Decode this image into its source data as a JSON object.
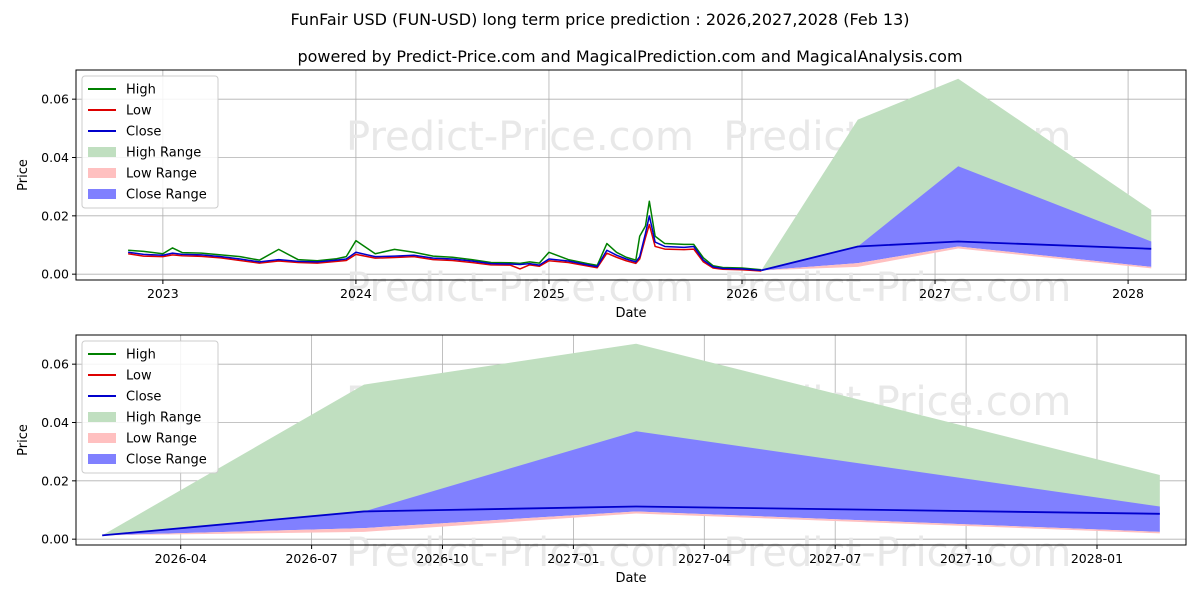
{
  "title": "FunFair USD (FUN-USD) long term price prediction : 2026,2027,2028 (Feb 13)",
  "subtitle": "powered by Predict-Price.com and MagicalPrediction.com and MagicalAnalysis.com",
  "watermark": "Predict-Price.com",
  "colors": {
    "high": "#008000",
    "low": "#dd0000",
    "close": "#0000cc",
    "high_range": "#c0dfc0",
    "low_range": "#ffc0c0",
    "close_range": "#8080ff"
  },
  "chart_data": [
    {
      "type": "area",
      "xlabel": "Date",
      "ylabel": "Price",
      "ylim": [
        -0.002,
        0.07
      ],
      "xlim": [
        2022.55,
        2028.3
      ],
      "yticks": [
        0.0,
        0.02,
        0.04,
        0.06
      ],
      "ytick_labels": [
        "0.00",
        "0.02",
        "0.04",
        "0.06"
      ],
      "xticks": [
        2023,
        2024,
        2025,
        2026,
        2027,
        2028
      ],
      "xtick_labels": [
        "2023",
        "2024",
        "2025",
        "2026",
        "2027",
        "2028"
      ],
      "legend": [
        "High",
        "Low",
        "Close",
        "High Range",
        "Low Range",
        "Close Range"
      ],
      "legend_position": "top-left",
      "history": {
        "x": [
          2022.82,
          2022.9,
          2023.0,
          2023.05,
          2023.1,
          2023.2,
          2023.3,
          2023.4,
          2023.5,
          2023.6,
          2023.7,
          2023.8,
          2023.9,
          2023.95,
          2024.0,
          2024.1,
          2024.2,
          2024.3,
          2024.4,
          2024.5,
          2024.6,
          2024.7,
          2024.8,
          2024.85,
          2024.9,
          2024.95,
          2025.0,
          2025.1,
          2025.2,
          2025.25,
          2025.3,
          2025.35,
          2025.4,
          2025.45,
          2025.47,
          2025.5,
          2025.52,
          2025.55,
          2025.6,
          2025.7,
          2025.75,
          2025.8,
          2025.85,
          2025.9,
          2026.0,
          2026.1
        ],
        "close": [
          0.0075,
          0.0068,
          0.0065,
          0.0072,
          0.0068,
          0.0066,
          0.006,
          0.0052,
          0.0042,
          0.005,
          0.0044,
          0.0042,
          0.0048,
          0.0052,
          0.0075,
          0.006,
          0.0062,
          0.0065,
          0.0055,
          0.0052,
          0.0045,
          0.0036,
          0.0035,
          0.0033,
          0.0036,
          0.0031,
          0.0052,
          0.0045,
          0.0032,
          0.0026,
          0.0082,
          0.0065,
          0.0052,
          0.0042,
          0.006,
          0.014,
          0.02,
          0.011,
          0.0095,
          0.0092,
          0.0095,
          0.0048,
          0.0025,
          0.002,
          0.0018,
          0.0013
        ],
        "high": [
          0.0082,
          0.0078,
          0.007,
          0.009,
          0.0074,
          0.0072,
          0.0066,
          0.006,
          0.0048,
          0.0085,
          0.005,
          0.0046,
          0.0053,
          0.006,
          0.0115,
          0.007,
          0.0085,
          0.0075,
          0.0062,
          0.0058,
          0.005,
          0.004,
          0.0039,
          0.0037,
          0.0042,
          0.0038,
          0.0075,
          0.005,
          0.0036,
          0.003,
          0.0105,
          0.0075,
          0.0058,
          0.0048,
          0.013,
          0.0165,
          0.025,
          0.013,
          0.0105,
          0.0102,
          0.0102,
          0.0056,
          0.0029,
          0.0023,
          0.0021,
          0.0015
        ],
        "low": [
          0.007,
          0.0062,
          0.006,
          0.0066,
          0.0063,
          0.0061,
          0.0056,
          0.0047,
          0.0038,
          0.0045,
          0.004,
          0.0038,
          0.0044,
          0.0047,
          0.0068,
          0.0055,
          0.0057,
          0.006,
          0.005,
          0.0047,
          0.004,
          0.0032,
          0.0031,
          0.0018,
          0.0032,
          0.0027,
          0.0046,
          0.004,
          0.0028,
          0.0022,
          0.0072,
          0.0058,
          0.0046,
          0.0037,
          0.0052,
          0.0125,
          0.017,
          0.0095,
          0.0086,
          0.0084,
          0.0086,
          0.0042,
          0.0021,
          0.0017,
          0.0015,
          0.0011
        ]
      },
      "forecast": {
        "x": [
          2026.1,
          2026.6,
          2027.12,
          2028.12
        ],
        "close": [
          0.0013,
          0.0095,
          0.0112,
          0.0087
        ],
        "high_range": [
          [
            0.0013,
            0.0013
          ],
          [
            0.0095,
            0.053
          ],
          [
            0.0112,
            0.067
          ],
          [
            0.0087,
            0.022
          ]
        ],
        "close_range": [
          [
            0.0013,
            0.0013
          ],
          [
            0.0038,
            0.0095
          ],
          [
            0.0095,
            0.037
          ],
          [
            0.0025,
            0.0112
          ]
        ],
        "low_range": [
          [
            0.0013,
            0.0013
          ],
          [
            0.0025,
            0.0038
          ],
          [
            0.0088,
            0.0095
          ],
          [
            0.002,
            0.0025
          ]
        ]
      }
    },
    {
      "type": "area",
      "xlabel": "Date",
      "ylabel": "Price",
      "ylim": [
        -0.002,
        0.07
      ],
      "xlim": [
        2026.05,
        2028.17
      ],
      "yticks": [
        0.0,
        0.02,
        0.04,
        0.06
      ],
      "ytick_labels": [
        "0.00",
        "0.02",
        "0.04",
        "0.06"
      ],
      "xticks": [
        2026.25,
        2026.5,
        2026.75,
        2027.0,
        2027.25,
        2027.5,
        2027.75,
        2028.0
      ],
      "xtick_labels": [
        "2026-04",
        "2026-07",
        "2026-10",
        "2027-01",
        "2027-04",
        "2027-07",
        "2027-10",
        "2028-01"
      ],
      "legend": [
        "High",
        "Low",
        "Close",
        "High Range",
        "Low Range",
        "Close Range"
      ],
      "legend_position": "top-left",
      "forecast": {
        "x": [
          2026.1,
          2026.6,
          2027.12,
          2028.12
        ],
        "close": [
          0.0013,
          0.0095,
          0.0112,
          0.0087
        ],
        "high_range": [
          [
            0.0013,
            0.0013
          ],
          [
            0.0095,
            0.053
          ],
          [
            0.0112,
            0.067
          ],
          [
            0.0087,
            0.022
          ]
        ],
        "close_range": [
          [
            0.0013,
            0.0013
          ],
          [
            0.0038,
            0.0095
          ],
          [
            0.0095,
            0.037
          ],
          [
            0.0025,
            0.0112
          ]
        ],
        "low_range": [
          [
            0.0013,
            0.0013
          ],
          [
            0.0025,
            0.0038
          ],
          [
            0.0088,
            0.0095
          ],
          [
            0.002,
            0.0025
          ]
        ]
      }
    }
  ]
}
